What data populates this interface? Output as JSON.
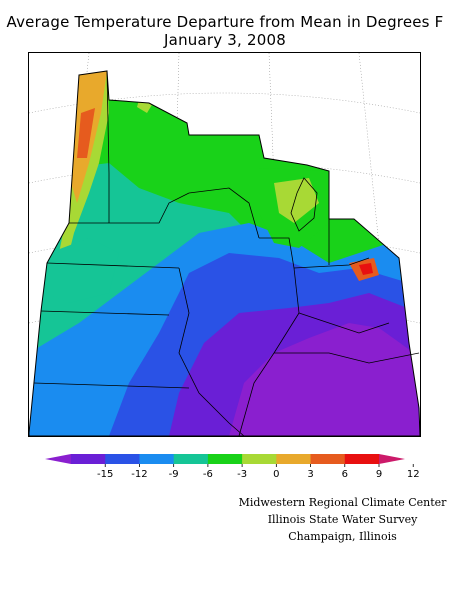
{
  "title": {
    "line1": "Average Temperature Departure from Mean in Degrees F",
    "line2": "January 3, 2008"
  },
  "colorbar": {
    "ticks": [
      "-15",
      "-12",
      "-9",
      "-6",
      "-3",
      "0",
      "3",
      "6",
      "9",
      "12"
    ],
    "colors": [
      "#8a1fcf",
      "#6a1fd6",
      "#2a52e6",
      "#1a8cf0",
      "#15c596",
      "#19d219",
      "#a8d935",
      "#e8a92c",
      "#e65b1e",
      "#e81010",
      "#cc1a6a"
    ]
  },
  "credits": {
    "line1": "Midwestern Regional Climate Center",
    "line2": "Illinois State Water Survey",
    "line3": "Champaign, Illinois"
  }
}
